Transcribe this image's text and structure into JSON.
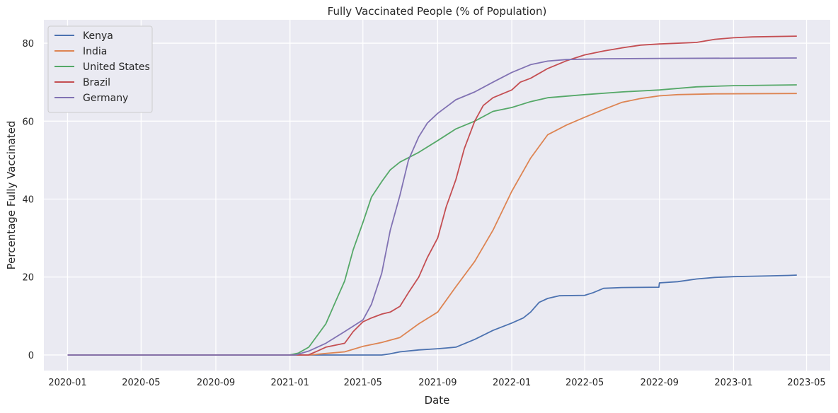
{
  "chart_data": {
    "type": "line",
    "title": "Fully Vaccinated People (% of Population)",
    "xlabel": "Date",
    "ylabel": "Percentage Fully Vaccinated",
    "xlim": [
      "2019-11-23",
      "2023-06-09"
    ],
    "ylim": [
      -4,
      86
    ],
    "x_ticks": [
      "2020-01",
      "2020-05",
      "2020-09",
      "2021-01",
      "2021-05",
      "2021-09",
      "2022-01",
      "2022-05",
      "2022-09",
      "2023-01",
      "2023-05"
    ],
    "y_ticks": [
      0,
      20,
      40,
      60,
      80
    ],
    "grid": true,
    "background": "#eaeaf2",
    "legend_position": "top-left",
    "series": [
      {
        "name": "Kenya",
        "color": "#4c72b0",
        "points": [
          [
            "2020-01-01",
            0
          ],
          [
            "2021-03-01",
            0
          ],
          [
            "2021-06-01",
            0
          ],
          [
            "2021-06-15",
            0.3
          ],
          [
            "2021-07-01",
            0.8
          ],
          [
            "2021-08-01",
            1.3
          ],
          [
            "2021-09-01",
            1.6
          ],
          [
            "2021-10-01",
            2.0
          ],
          [
            "2021-11-01",
            4.0
          ],
          [
            "2021-12-01",
            6.3
          ],
          [
            "2022-01-01",
            8.2
          ],
          [
            "2022-01-20",
            9.5
          ],
          [
            "2022-02-01",
            11.0
          ],
          [
            "2022-02-15",
            13.5
          ],
          [
            "2022-03-01",
            14.5
          ],
          [
            "2022-03-20",
            15.2
          ],
          [
            "2022-05-01",
            15.3
          ],
          [
            "2022-05-15",
            16.0
          ],
          [
            "2022-06-01",
            17.1
          ],
          [
            "2022-07-01",
            17.3
          ],
          [
            "2022-08-31",
            17.4
          ],
          [
            "2022-09-01",
            18.5
          ],
          [
            "2022-10-01",
            18.8
          ],
          [
            "2022-11-01",
            19.5
          ],
          [
            "2022-12-01",
            19.9
          ],
          [
            "2023-01-01",
            20.1
          ],
          [
            "2023-02-01",
            20.2
          ],
          [
            "2023-03-01",
            20.3
          ],
          [
            "2023-04-01",
            20.4
          ],
          [
            "2023-04-15",
            20.5
          ]
        ]
      },
      {
        "name": "India",
        "color": "#dd8452",
        "points": [
          [
            "2020-01-01",
            0
          ],
          [
            "2021-02-01",
            0
          ],
          [
            "2021-03-01",
            0.4
          ],
          [
            "2021-04-01",
            0.8
          ],
          [
            "2021-05-01",
            2.2
          ],
          [
            "2021-06-01",
            3.2
          ],
          [
            "2021-07-01",
            4.5
          ],
          [
            "2021-08-01",
            8.0
          ],
          [
            "2021-09-01",
            11.0
          ],
          [
            "2021-10-01",
            17.5
          ],
          [
            "2021-11-01",
            24.0
          ],
          [
            "2021-12-01",
            32.0
          ],
          [
            "2022-01-01",
            42.0
          ],
          [
            "2022-02-01",
            50.5
          ],
          [
            "2022-03-01",
            56.5
          ],
          [
            "2022-04-01",
            59.0
          ],
          [
            "2022-05-01",
            61.0
          ],
          [
            "2022-06-01",
            63.0
          ],
          [
            "2022-07-01",
            64.8
          ],
          [
            "2022-08-01",
            65.8
          ],
          [
            "2022-09-01",
            66.5
          ],
          [
            "2022-10-01",
            66.8
          ],
          [
            "2022-12-01",
            67.0
          ],
          [
            "2023-04-15",
            67.1
          ]
        ]
      },
      {
        "name": "United States",
        "color": "#55a868",
        "points": [
          [
            "2020-01-01",
            0
          ],
          [
            "2020-12-31",
            0
          ],
          [
            "2021-01-15",
            0.5
          ],
          [
            "2021-02-01",
            2.0
          ],
          [
            "2021-02-15",
            5.0
          ],
          [
            "2021-03-01",
            8.0
          ],
          [
            "2021-03-15",
            13.0
          ],
          [
            "2021-04-01",
            19.0
          ],
          [
            "2021-04-15",
            27.0
          ],
          [
            "2021-05-01",
            34.0
          ],
          [
            "2021-05-15",
            40.5
          ],
          [
            "2021-06-01",
            44.5
          ],
          [
            "2021-06-15",
            47.5
          ],
          [
            "2021-07-01",
            49.5
          ],
          [
            "2021-08-01",
            52.0
          ],
          [
            "2021-09-01",
            55.0
          ],
          [
            "2021-10-01",
            58.0
          ],
          [
            "2021-11-01",
            60.0
          ],
          [
            "2021-12-01",
            62.5
          ],
          [
            "2022-01-01",
            63.5
          ],
          [
            "2022-02-01",
            65.0
          ],
          [
            "2022-03-01",
            66.0
          ],
          [
            "2022-05-01",
            66.8
          ],
          [
            "2022-07-01",
            67.5
          ],
          [
            "2022-09-01",
            68.0
          ],
          [
            "2022-11-01",
            68.8
          ],
          [
            "2023-01-01",
            69.1
          ],
          [
            "2023-04-15",
            69.3
          ]
        ]
      },
      {
        "name": "Brazil",
        "color": "#c44e52",
        "points": [
          [
            "2020-01-01",
            0
          ],
          [
            "2021-01-31",
            0
          ],
          [
            "2021-02-15",
            1.0
          ],
          [
            "2021-03-01",
            2.0
          ],
          [
            "2021-04-01",
            3.0
          ],
          [
            "2021-04-15",
            6.0
          ],
          [
            "2021-05-01",
            8.5
          ],
          [
            "2021-05-15",
            9.5
          ],
          [
            "2021-06-01",
            10.5
          ],
          [
            "2021-06-15",
            11.0
          ],
          [
            "2021-07-01",
            12.5
          ],
          [
            "2021-07-15",
            16.0
          ],
          [
            "2021-08-01",
            20.0
          ],
          [
            "2021-08-15",
            25.0
          ],
          [
            "2021-09-01",
            30.0
          ],
          [
            "2021-09-15",
            38.0
          ],
          [
            "2021-10-01",
            45.0
          ],
          [
            "2021-10-15",
            53.0
          ],
          [
            "2021-11-01",
            60.0
          ],
          [
            "2021-11-15",
            64.0
          ],
          [
            "2021-12-01",
            66.0
          ],
          [
            "2022-01-01",
            68.0
          ],
          [
            "2022-01-15",
            70.0
          ],
          [
            "2022-02-01",
            71.0
          ],
          [
            "2022-03-01",
            73.5
          ],
          [
            "2022-04-01",
            75.5
          ],
          [
            "2022-05-01",
            77.0
          ],
          [
            "2022-06-01",
            78.0
          ],
          [
            "2022-07-01",
            78.8
          ],
          [
            "2022-08-01",
            79.5
          ],
          [
            "2022-09-01",
            79.8
          ],
          [
            "2022-11-01",
            80.2
          ],
          [
            "2022-12-01",
            81.0
          ],
          [
            "2023-01-01",
            81.4
          ],
          [
            "2023-02-01",
            81.6
          ],
          [
            "2023-04-15",
            81.8
          ]
        ]
      },
      {
        "name": "Germany",
        "color": "#8172b3",
        "points": [
          [
            "2020-01-01",
            0
          ],
          [
            "2021-01-10",
            0
          ],
          [
            "2021-02-01",
            1.0
          ],
          [
            "2021-03-01",
            3.0
          ],
          [
            "2021-04-01",
            6.0
          ],
          [
            "2021-05-01",
            9.0
          ],
          [
            "2021-05-15",
            13.0
          ],
          [
            "2021-06-01",
            21.0
          ],
          [
            "2021-06-15",
            32.0
          ],
          [
            "2021-07-01",
            41.0
          ],
          [
            "2021-07-15",
            50.0
          ],
          [
            "2021-08-01",
            56.0
          ],
          [
            "2021-08-15",
            59.5
          ],
          [
            "2021-09-01",
            62.0
          ],
          [
            "2021-10-01",
            65.5
          ],
          [
            "2021-11-01",
            67.5
          ],
          [
            "2021-12-01",
            70.0
          ],
          [
            "2022-01-01",
            72.5
          ],
          [
            "2022-02-01",
            74.5
          ],
          [
            "2022-03-01",
            75.4
          ],
          [
            "2022-04-01",
            75.8
          ],
          [
            "2022-06-01",
            76.0
          ],
          [
            "2022-09-01",
            76.1
          ],
          [
            "2023-04-15",
            76.2
          ]
        ]
      }
    ]
  }
}
